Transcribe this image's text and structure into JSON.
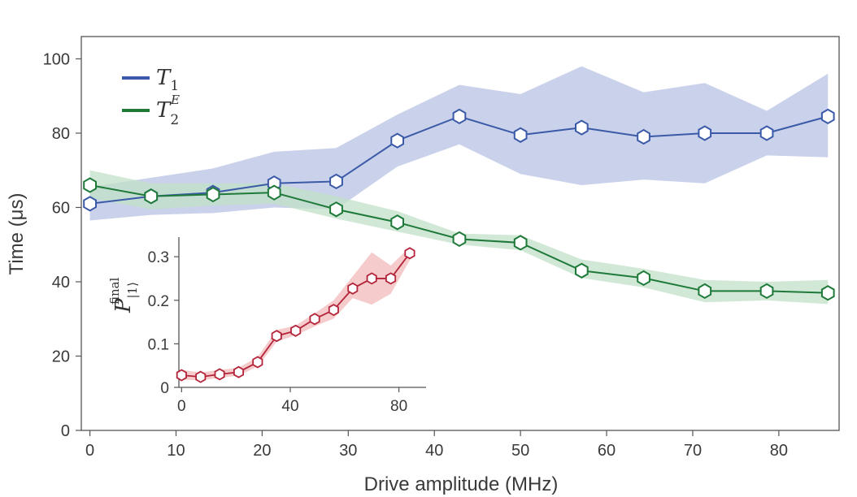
{
  "chart_data": [
    {
      "type": "line",
      "id": "main",
      "xlabel": "Drive amplitude (MHz)",
      "ylabel": "Time (μs)",
      "xlim": [
        -1,
        87
      ],
      "ylim": [
        0,
        106
      ],
      "xticks": [
        0,
        10,
        20,
        30,
        40,
        50,
        60,
        70,
        80
      ],
      "yticks": [
        0,
        20,
        40,
        60,
        80,
        100
      ],
      "legend": [
        {
          "name": "T",
          "subscript": "1",
          "superscript": "",
          "color": "#3a5aa8"
        },
        {
          "name": "T",
          "subscript": "2",
          "superscript": "E",
          "color": "#1f7a3a"
        }
      ],
      "series": [
        {
          "name": "T1",
          "color": "#3a5aa8",
          "band_color": "#b8c2e3",
          "x": [
            0,
            7.1,
            14.3,
            21.4,
            28.6,
            35.7,
            42.9,
            50.0,
            57.1,
            64.3,
            71.4,
            78.6,
            85.7
          ],
          "y": [
            61,
            63,
            64,
            66.5,
            67,
            78,
            84.5,
            79.5,
            81.5,
            79,
            80,
            80,
            84.5
          ],
          "lower": [
            56.5,
            58,
            58.5,
            60,
            59.5,
            71,
            77,
            69,
            66,
            67.5,
            66.5,
            74,
            73.5
          ],
          "upper": [
            65.5,
            68,
            70.5,
            75,
            76,
            85,
            93,
            90.5,
            98,
            91,
            93.5,
            86,
            96
          ]
        },
        {
          "name": "T2E",
          "color": "#1f7a3a",
          "band_color": "#c2e0c8",
          "x": [
            0,
            7.1,
            14.3,
            21.4,
            28.6,
            35.7,
            42.9,
            50.0,
            57.1,
            64.3,
            71.4,
            78.6,
            85.7
          ],
          "y": [
            66,
            63,
            63.5,
            64,
            59.5,
            56,
            51.5,
            50.5,
            43,
            41,
            37.5,
            37.5,
            37
          ],
          "lower": [
            62.5,
            59.5,
            60.5,
            61,
            57,
            53.5,
            50,
            48.5,
            41,
            38.5,
            34.5,
            35,
            34
          ],
          "upper": [
            70,
            66.5,
            66.5,
            66.5,
            63,
            59,
            53,
            52.5,
            46,
            43.5,
            40.5,
            40,
            40.5
          ]
        }
      ]
    },
    {
      "type": "line",
      "id": "inset",
      "ylabel_main": "P",
      "ylabel_sub": "|1⟩",
      "ylabel_sup": "final",
      "xlim": [
        -1,
        90
      ],
      "ylim": [
        0,
        0.345
      ],
      "xticks": [
        0,
        40,
        80
      ],
      "xtick_labels": [
        "0",
        "40",
        "80"
      ],
      "yticks": [
        0,
        0.1,
        0.2,
        0.3
      ],
      "ytick_labels": [
        "0",
        "0.1",
        "0.2",
        "0.3"
      ],
      "series": [
        {
          "name": "P_final",
          "color": "#b3243a",
          "band_color": "#f4c2c2",
          "x": [
            0,
            7,
            14,
            21,
            28,
            35,
            42,
            49,
            56,
            63,
            70,
            77,
            84
          ],
          "y": [
            0.028,
            0.024,
            0.03,
            0.035,
            0.058,
            0.118,
            0.13,
            0.157,
            0.178,
            0.227,
            0.25,
            0.25,
            0.308
          ],
          "lower": [
            0.018,
            0.016,
            0.022,
            0.027,
            0.048,
            0.105,
            0.12,
            0.14,
            0.158,
            0.205,
            0.19,
            0.215,
            0.292
          ],
          "upper": [
            0.04,
            0.034,
            0.04,
            0.045,
            0.07,
            0.132,
            0.142,
            0.17,
            0.2,
            0.255,
            0.31,
            0.28,
            0.322
          ]
        }
      ]
    }
  ]
}
